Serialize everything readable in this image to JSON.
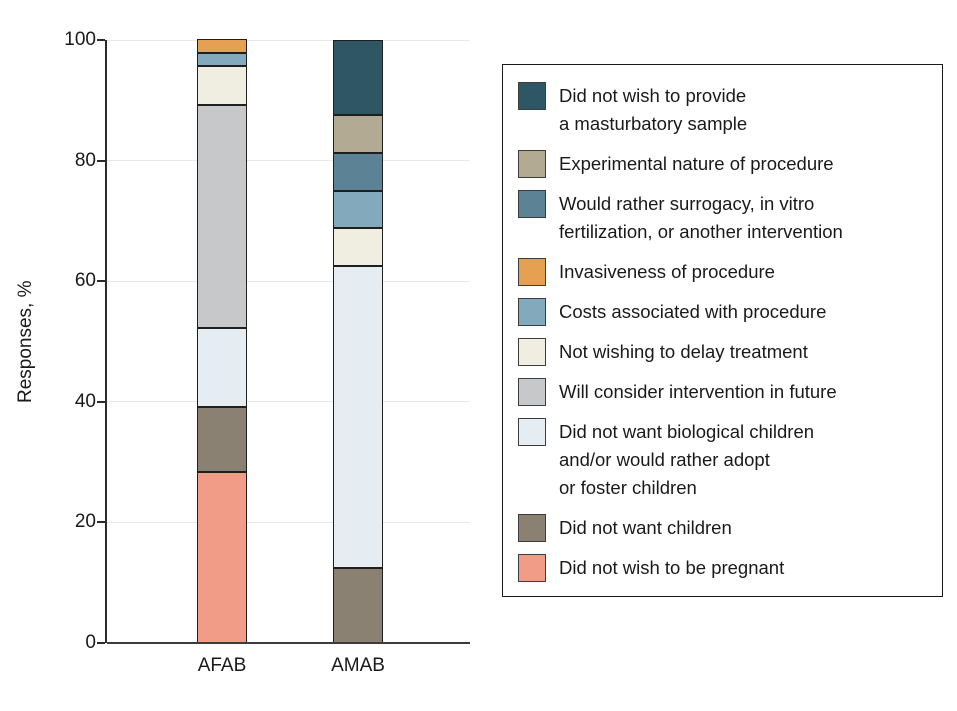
{
  "figure": {
    "background": "#ffffff",
    "axis_color": "#2b2b2b",
    "gridline_color": "#e8e8e8",
    "baseline_color": "#3c3c3c",
    "text_color": "#1a1a1a",
    "segment_border_color": "#1f1f1f",
    "legend_border_color": "#1a1a1a",
    "swatch_border_color": "#3d3d3d"
  },
  "chart_data": {
    "type": "bar",
    "stacked": true,
    "title": "",
    "xlabel": "",
    "ylabel": "Responses, %",
    "categories": [
      "AFAB",
      "AMAB"
    ],
    "ylim": [
      0,
      100
    ],
    "yticks": [
      0,
      20,
      40,
      60,
      80,
      100
    ],
    "grid": true,
    "legend_position": "right",
    "stack_order": "reverse of legend order (legend top item = top of bar)",
    "series": [
      {
        "name": "Did not wish to provide a masturbatory sample",
        "label": "Did not wish to provide\na masturbatory sample",
        "color": "#2E5665",
        "values": [
          0,
          12.5
        ]
      },
      {
        "name": "Experimental nature of procedure",
        "label": "Experimental nature of procedure",
        "color": "#B3AA94",
        "values": [
          0,
          6.25
        ]
      },
      {
        "name": "Would rather surrogacy, in vitro fertilization, or another intervention",
        "label": "Would rather surrogacy, in vitro\nfertilization, or another intervention",
        "color": "#5C8295",
        "values": [
          0,
          6.25
        ]
      },
      {
        "name": "Invasiveness of procedure",
        "label": "Invasiveness of procedure",
        "color": "#E5A052",
        "values": [
          2.2,
          0
        ]
      },
      {
        "name": "Costs associated with procedure",
        "label": "Costs associated with procedure",
        "color": "#83A9BD",
        "values": [
          2.2,
          6.25
        ]
      },
      {
        "name": "Not wishing to delay treatment",
        "label": "Not wishing to delay treatment",
        "color": "#EFEEE1",
        "values": [
          6.5,
          6.25
        ]
      },
      {
        "name": "Will consider intervention in future",
        "label": "Will consider intervention in future",
        "color": "#C7C8CA",
        "values": [
          37.0,
          0
        ]
      },
      {
        "name": "Did not want biological children and/or would rather adopt or foster children",
        "label": "Did not want biological children\nand/or would rather adopt\nor foster children",
        "color": "#E5EDF2",
        "values": [
          13.0,
          50.0
        ]
      },
      {
        "name": "Did not want children",
        "label": "Did not want children",
        "color": "#8A8172",
        "values": [
          10.9,
          12.5
        ]
      },
      {
        "name": "Did not wish to be pregnant",
        "label": "Did not wish to be pregnant",
        "color": "#F19C86",
        "values": [
          28.3,
          0
        ]
      }
    ]
  }
}
